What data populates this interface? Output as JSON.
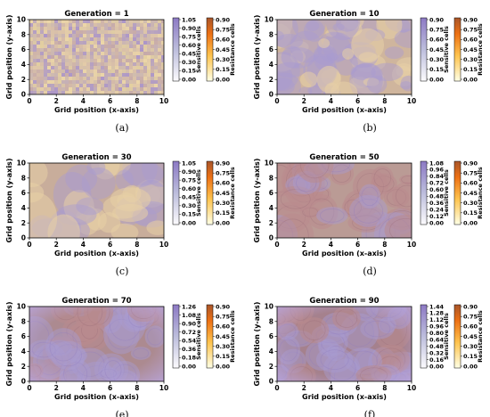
{
  "chart_data": [
    {
      "type": "heatmap",
      "caption": "(a)",
      "title": "Generation = 1",
      "xlabel": "Grid position (x-axis)",
      "ylabel": "Grid position (y-axis)",
      "xlim": [
        0,
        10
      ],
      "ylim": [
        0,
        10
      ],
      "xticks": [
        "0",
        "2",
        "4",
        "6",
        "8",
        "10"
      ],
      "yticks": [
        "0",
        "2",
        "4",
        "6",
        "8",
        "10"
      ],
      "colorbars": [
        {
          "label": "Sensitive cells",
          "ticks": [
            "0.00",
            "0.15",
            "0.30",
            "0.45",
            "0.60",
            "0.75",
            "0.90",
            "1.05"
          ],
          "cmap": "Purples"
        },
        {
          "label": "Resistance cells",
          "ticks": [
            "0.00",
            "0.15",
            "0.30",
            "0.45",
            "0.60",
            "0.75",
            "0.90"
          ],
          "cmap": "YlOrBr"
        }
      ],
      "field": {
        "pattern": "fine-speckle",
        "sensitive_level": 0.55,
        "resistant_level": 0.5,
        "edge_purple": false
      }
    },
    {
      "type": "heatmap",
      "caption": "(b)",
      "title": "Generation = 10",
      "xlabel": "Grid position (x-axis)",
      "ylabel": "Grid position (y-axis)",
      "xlim": [
        0,
        10
      ],
      "ylim": [
        0,
        10
      ],
      "xticks": [
        "0",
        "2",
        "4",
        "6",
        "8",
        "10"
      ],
      "yticks": [
        "0",
        "2",
        "4",
        "6",
        "8",
        "10"
      ],
      "colorbars": [
        {
          "label": "Sensitive cells",
          "ticks": [
            "0.00",
            "0.15",
            "0.30",
            "0.45",
            "0.60",
            "0.75",
            "0.90"
          ],
          "cmap": "Purples"
        },
        {
          "label": "Resistance cells",
          "ticks": [
            "0.00",
            "0.15",
            "0.30",
            "0.45",
            "0.60",
            "0.75",
            "0.90"
          ],
          "cmap": "YlOrBr"
        }
      ],
      "field": {
        "pattern": "blotchy",
        "sensitive_level": 0.45,
        "resistant_level": 0.45,
        "edge_purple": false
      }
    },
    {
      "type": "heatmap",
      "caption": "(c)",
      "title": "Generation = 30",
      "xlabel": "Grid position (x-axis)",
      "ylabel": "Grid position (y-axis)",
      "xlim": [
        0,
        10
      ],
      "ylim": [
        0,
        10
      ],
      "xticks": [
        "0",
        "2",
        "4",
        "6",
        "8",
        "10"
      ],
      "yticks": [
        "0",
        "2",
        "4",
        "6",
        "8",
        "10"
      ],
      "colorbars": [
        {
          "label": "Sensitive cells",
          "ticks": [
            "0.00",
            "0.15",
            "0.30",
            "0.45",
            "0.60",
            "0.75",
            "0.90",
            "1.05"
          ],
          "cmap": "Purples"
        },
        {
          "label": "Resistance cells",
          "ticks": [
            "0.00",
            "0.15",
            "0.30",
            "0.45",
            "0.60",
            "0.75",
            "0.90"
          ],
          "cmap": "YlOrBr"
        }
      ],
      "field": {
        "pattern": "smooth",
        "sensitive_level": 0.5,
        "resistant_level": 0.5,
        "edge_purple": false
      }
    },
    {
      "type": "heatmap",
      "caption": "(d)",
      "title": "Generation = 50",
      "xlabel": "Grid position (x-axis)",
      "ylabel": "Grid position (y-axis)",
      "xlim": [
        0,
        10
      ],
      "ylim": [
        0,
        10
      ],
      "xticks": [
        "0",
        "2",
        "4",
        "6",
        "8",
        "10"
      ],
      "yticks": [
        "0",
        "2",
        "4",
        "6",
        "8",
        "10"
      ],
      "colorbars": [
        {
          "label": "Sensitive cells",
          "ticks": [
            "0.00",
            "0.12",
            "0.24",
            "0.36",
            "0.48",
            "0.60",
            "0.72",
            "0.84",
            "0.96",
            "1.08"
          ],
          "cmap": "Purples"
        },
        {
          "label": "Resistance cells",
          "ticks": [
            "0.00",
            "0.15",
            "0.30",
            "0.45",
            "0.60",
            "0.75",
            "0.90"
          ],
          "cmap": "YlOrBr"
        }
      ],
      "field": {
        "pattern": "contoured",
        "sensitive_level": 0.55,
        "resistant_level": 0.6,
        "edge_purple": false
      }
    },
    {
      "type": "heatmap",
      "caption": "(e)",
      "title": "Generation = 70",
      "xlabel": "Grid position (x-axis)",
      "ylabel": "Grid position (y-axis)",
      "xlim": [
        0,
        10
      ],
      "ylim": [
        0,
        10
      ],
      "xticks": [
        "0",
        "2",
        "4",
        "6",
        "8",
        "10"
      ],
      "yticks": [
        "0",
        "2",
        "4",
        "6",
        "8",
        "10"
      ],
      "colorbars": [
        {
          "label": "Sensitive cells",
          "ticks": [
            "0.00",
            "0.18",
            "0.36",
            "0.54",
            "0.72",
            "0.90",
            "1.08",
            "1.26"
          ],
          "cmap": "Purples"
        },
        {
          "label": "Resistance cells",
          "ticks": [
            "0.00",
            "0.15",
            "0.30",
            "0.45",
            "0.60",
            "0.75",
            "0.90"
          ],
          "cmap": "YlOrBr"
        }
      ],
      "field": {
        "pattern": "contoured",
        "sensitive_level": 0.6,
        "resistant_level": 0.7,
        "edge_purple": true
      }
    },
    {
      "type": "heatmap",
      "caption": "(f)",
      "title": "Generation = 90",
      "xlabel": "Grid position (x-axis)",
      "ylabel": "Grid position (y-axis)",
      "xlim": [
        0,
        10
      ],
      "ylim": [
        0,
        10
      ],
      "xticks": [
        "0",
        "2",
        "4",
        "6",
        "8",
        "10"
      ],
      "yticks": [
        "0",
        "2",
        "4",
        "6",
        "8",
        "10"
      ],
      "colorbars": [
        {
          "label": "Sensitive cells",
          "ticks": [
            "0.00",
            "0.16",
            "0.32",
            "0.48",
            "0.64",
            "0.80",
            "0.96",
            "1.12",
            "1.28",
            "1.44"
          ],
          "cmap": "Purples"
        },
        {
          "label": "Resistance cells",
          "ticks": [
            "0.00",
            "0.15",
            "0.30",
            "0.45",
            "0.60",
            "0.75",
            "0.90"
          ],
          "cmap": "YlOrBr"
        }
      ],
      "field": {
        "pattern": "contoured",
        "sensitive_level": 0.65,
        "resistant_level": 0.75,
        "edge_purple": true
      }
    }
  ]
}
